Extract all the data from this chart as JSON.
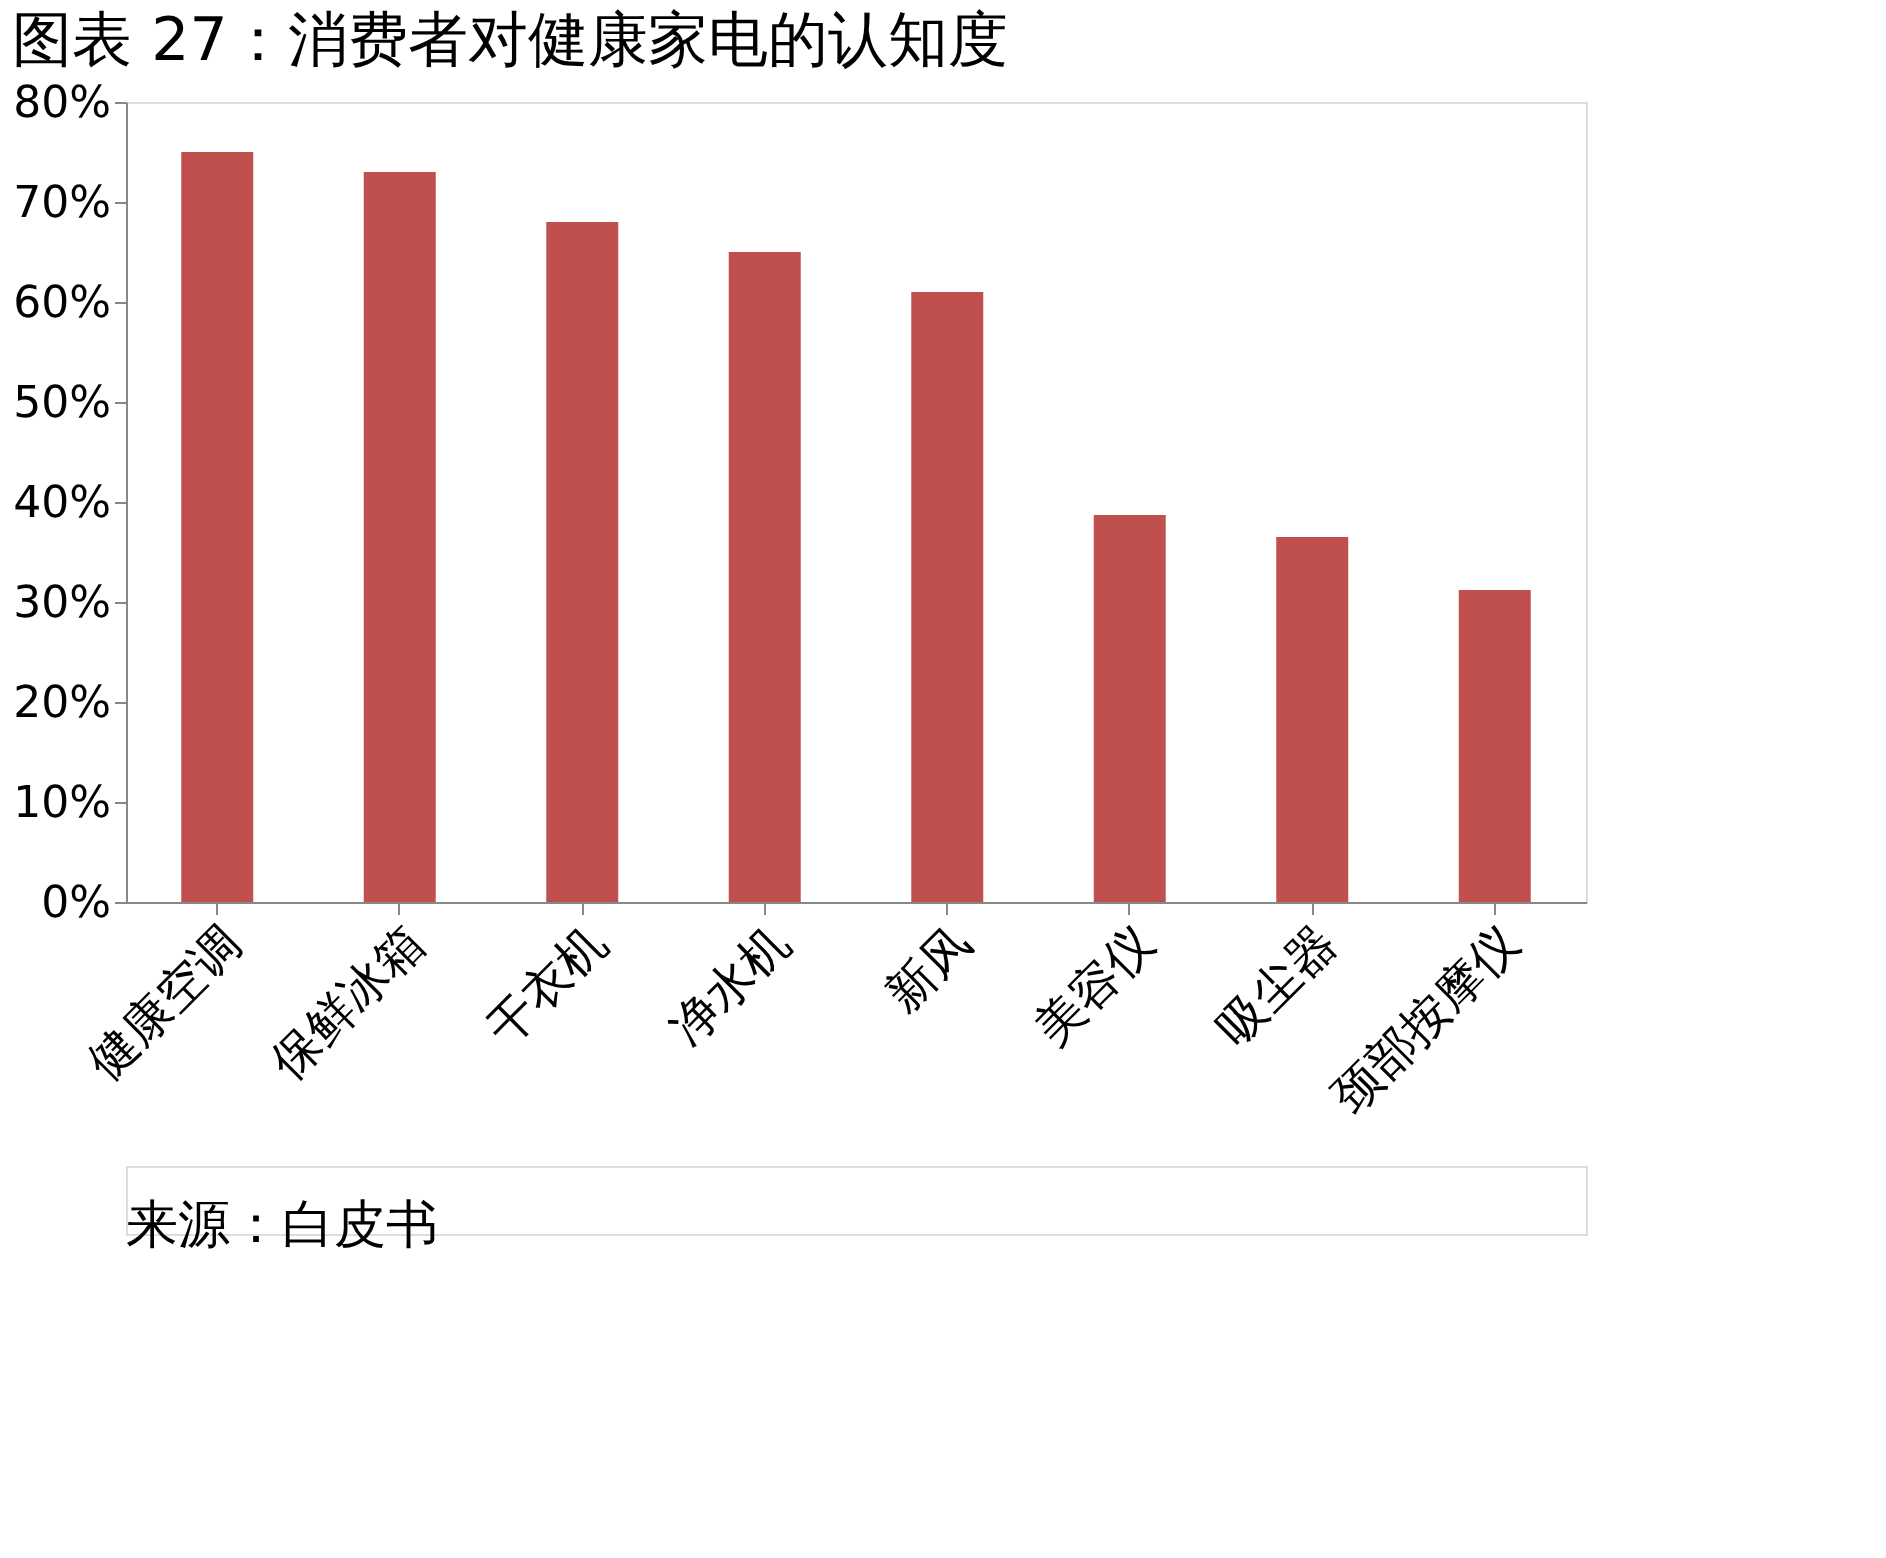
{
  "chart_data": {
    "type": "bar",
    "title": "图表 27：消费者对健康家电的认知度",
    "categories": [
      "健康空调",
      "保鲜冰箱",
      "干衣机",
      "净水机",
      "新风",
      "美容仪",
      "吸尘器",
      "颈部按摩仪"
    ],
    "values": [
      75,
      73,
      68,
      65,
      61,
      38.7,
      36.5,
      31.2
    ],
    "color": "#c0504d",
    "ylim": [
      0,
      80
    ],
    "yticks": [
      {
        "value": 0,
        "label": "0%"
      },
      {
        "value": 10,
        "label": "10%"
      },
      {
        "value": 20,
        "label": "20%"
      },
      {
        "value": 30,
        "label": "30%"
      },
      {
        "value": 40,
        "label": "40%"
      },
      {
        "value": 50,
        "label": "50%"
      },
      {
        "value": 60,
        "label": "60%"
      },
      {
        "value": 70,
        "label": "70%"
      },
      {
        "value": 80,
        "label": "80%"
      }
    ],
    "grid": false,
    "annotations": [
      "来源：白皮书"
    ]
  }
}
